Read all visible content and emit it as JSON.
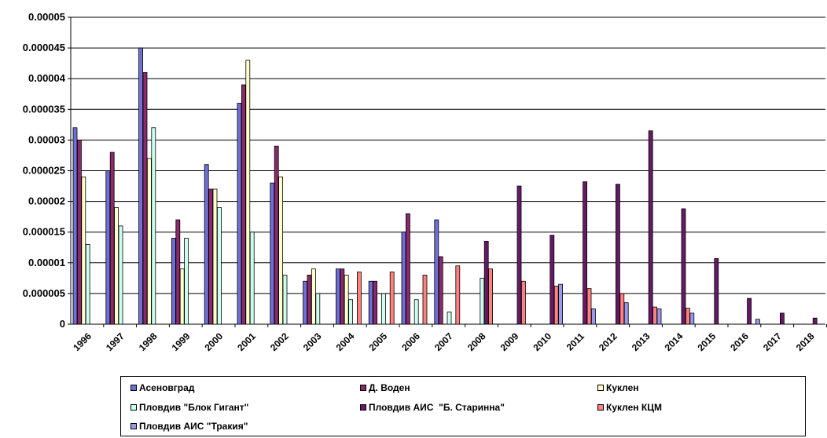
{
  "chart_data": {
    "type": "bar",
    "categories": [
      "1996",
      "1997",
      "1998",
      "1999",
      "2000",
      "2001",
      "2002",
      "2003",
      "2004",
      "2005",
      "2006",
      "2007",
      "2008",
      "2009",
      "2010",
      "2011",
      "2012",
      "2013",
      "2014",
      "2015",
      "2016",
      "2017",
      "2018"
    ],
    "ylim": [
      0,
      5e-05
    ],
    "yticks": [
      "0",
      "0.000005",
      "0.00001",
      "0.000015",
      "0.00002",
      "0.000025",
      "0.00003",
      "0.000035",
      "0.00004",
      "0.000045",
      "0.00005"
    ],
    "ytick_values": [
      0,
      5e-06,
      1e-05,
      1.5e-05,
      2e-05,
      2.5e-05,
      3e-05,
      3.5e-05,
      4e-05,
      4.5e-05,
      5e-05
    ],
    "grid": true,
    "legend_position": "bottom",
    "series": [
      {
        "name": "Асеновград",
        "color": "#6f6fd8",
        "values": [
          3.2e-05,
          2.5e-05,
          4.5e-05,
          1.4e-05,
          2.6e-05,
          3.6e-05,
          2.3e-05,
          7e-06,
          9e-06,
          7e-06,
          1.5e-05,
          1.7e-05,
          null,
          null,
          null,
          null,
          null,
          null,
          null,
          null,
          null,
          null,
          null
        ]
      },
      {
        "name": "Д. Воден",
        "color": "#8a2a6a",
        "values": [
          3e-05,
          2.8e-05,
          4.1e-05,
          1.7e-05,
          2.2e-05,
          3.9e-05,
          2.9e-05,
          8e-06,
          9e-06,
          7e-06,
          1.8e-05,
          1.1e-05,
          null,
          null,
          null,
          null,
          null,
          null,
          null,
          null,
          null,
          null,
          null
        ]
      },
      {
        "name": "Куклен",
        "color": "#ffffcc",
        "values": [
          2.4e-05,
          1.9e-05,
          2.7e-05,
          9e-06,
          2.2e-05,
          4.3e-05,
          2.4e-05,
          9e-06,
          8e-06,
          null,
          null,
          null,
          null,
          null,
          null,
          null,
          null,
          null,
          null,
          null,
          null,
          null,
          null
        ]
      },
      {
        "name": "Пловдив \"Блок Гигант\"",
        "color": "#ccffee",
        "values": [
          1.3e-05,
          1.6e-05,
          3.2e-05,
          1.4e-05,
          1.9e-05,
          1.5e-05,
          8e-06,
          5e-06,
          4e-06,
          5e-06,
          4e-06,
          2e-06,
          7.5e-06,
          null,
          null,
          null,
          null,
          null,
          null,
          null,
          null,
          null,
          null
        ]
      },
      {
        "name": "Пловдив АИС  \"Б. Старинна\"",
        "color": "#661a66",
        "values": [
          null,
          null,
          null,
          null,
          null,
          null,
          null,
          null,
          null,
          null,
          null,
          null,
          1.35e-05,
          2.25e-05,
          1.45e-05,
          2.32e-05,
          2.28e-05,
          3.15e-05,
          1.88e-05,
          1.07e-05,
          4.2e-06,
          1.8e-06,
          1e-06
        ]
      },
      {
        "name": "Куклен КЦМ",
        "color": "#ff8080",
        "values": [
          null,
          null,
          null,
          null,
          null,
          null,
          null,
          null,
          8.5e-06,
          8.5e-06,
          8e-06,
          9.5e-06,
          9e-06,
          7e-06,
          6.2e-06,
          5.8e-06,
          5e-06,
          2.8e-06,
          2.6e-06,
          null,
          null,
          null,
          null
        ]
      },
      {
        "name": "Пловдив АИС \"Тракия\"",
        "color": "#9999ee",
        "values": [
          null,
          null,
          null,
          null,
          null,
          null,
          null,
          null,
          null,
          null,
          null,
          null,
          null,
          null,
          6.5e-06,
          2.5e-06,
          3.5e-06,
          2.5e-06,
          1.8e-06,
          null,
          8e-07,
          null,
          null
        ]
      }
    ]
  }
}
